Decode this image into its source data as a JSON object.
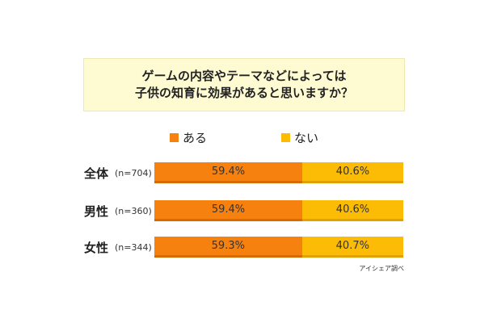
{
  "title_lines": [
    "ゲームの内容やテーマなどによっては",
    "子供の知育に効果があると思いますか？"
  ],
  "legend": [
    {
      "label": "ある",
      "color": "#f7810f"
    },
    {
      "label": "ない",
      "color": "#fcbc06"
    }
  ],
  "source": "アイシェア調べ",
  "chart_data": {
    "type": "bar",
    "orientation": "horizontal",
    "stacked": true,
    "percent_stacked": true,
    "title": "ゲームの内容やテーマなどによっては 子供の知育に効果があると思いますか？",
    "categories": [
      "全体",
      "男性",
      "女性"
    ],
    "sample_sizes": [
      "(n=704)",
      "(n=360)",
      "(n=344)"
    ],
    "series": [
      {
        "name": "ある",
        "values": [
          59.4,
          59.4,
          59.3
        ],
        "labels": [
          "59.4%",
          "59.4%",
          "59.3%"
        ],
        "color": "#f7810f"
      },
      {
        "name": "ない",
        "values": [
          40.6,
          40.6,
          40.7
        ],
        "labels": [
          "40.6%",
          "40.6%",
          "40.7%"
        ],
        "color": "#fcbc06"
      }
    ],
    "xlim": [
      0,
      100
    ],
    "legend_position": "top",
    "grid": false
  }
}
